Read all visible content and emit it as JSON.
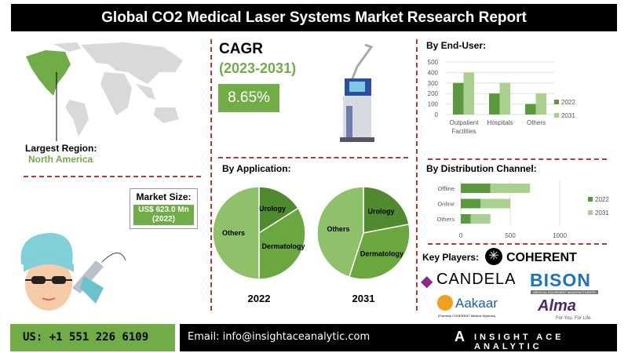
{
  "title": "Global CO2 Medical Laser Systems Market Research Report",
  "region": {
    "label": "Largest Region:",
    "value": "North America"
  },
  "market_size": {
    "label": "Market Size:",
    "value": "US$ 623.0 Mn",
    "year": "(2022)"
  },
  "cagr": {
    "label": "CAGR",
    "period": "(2023-2031)",
    "value": "8.65%"
  },
  "colors": {
    "accent": "#70ad47",
    "dark": "#5b9a3c",
    "light": "#a9d08e",
    "divider": "#b03a3a"
  },
  "chart_data": [
    {
      "type": "pie",
      "title": "By Application:",
      "caption": "2022",
      "categories": [
        "Urology",
        "Dermatology",
        "Others"
      ],
      "values": [
        16,
        34,
        50
      ],
      "colors": [
        "#4f8a2f",
        "#6aa83f",
        "#8fc06a"
      ]
    },
    {
      "type": "pie",
      "caption": "2031",
      "categories": [
        "Urology",
        "Dermatology",
        "Others"
      ],
      "values": [
        22,
        33,
        45
      ],
      "colors": [
        "#4f8a2f",
        "#6aa83f",
        "#8fc06a"
      ]
    },
    {
      "type": "bar",
      "title": "By End-User:",
      "categories": [
        "Outpatient Facilities",
        "Hospitals",
        "Others"
      ],
      "yticks": [
        "0",
        "100",
        "200",
        "300",
        "400",
        "500"
      ],
      "ylim": [
        0,
        500
      ],
      "grid": true,
      "legend": "right",
      "series": [
        {
          "name": "2022",
          "values": [
            300,
            200,
            100
          ],
          "color": "#5b9a3c"
        },
        {
          "name": "2031",
          "values": [
            400,
            300,
            200
          ],
          "color": "#a9d08e"
        }
      ]
    },
    {
      "type": "bar",
      "orientation": "horizontal",
      "stacked": true,
      "title": "By Distribution Channel:",
      "categories": [
        "Offline",
        "Online",
        "Others"
      ],
      "xticks": [
        "0",
        "500",
        "1000"
      ],
      "xlim": [
        0,
        1000
      ],
      "grid": true,
      "legend": "right",
      "series": [
        {
          "name": "2022",
          "values": [
            300,
            200,
            100
          ],
          "color": "#5b9a3c"
        },
        {
          "name": "2031",
          "values": [
            400,
            300,
            200
          ],
          "color": "#a9d08e"
        }
      ]
    }
  ],
  "key_players": {
    "label": "Key Players:",
    "logos": [
      "COHERENT",
      "CANDELA",
      "BISON",
      "Aakaar",
      "Alma"
    ],
    "bison_sub": "MEDICAL EQUIPMENT MANUFACTURERS",
    "aakaar_sub": "(Formerly COHERENT Medical Systems)",
    "alma_sub": "For You. For Life."
  },
  "footer": {
    "phone": "US: +1 551 226 6109",
    "email": "Email: info@insightaceanalytic.com",
    "brand": "INSIGHT ACE ANALYTIC"
  }
}
